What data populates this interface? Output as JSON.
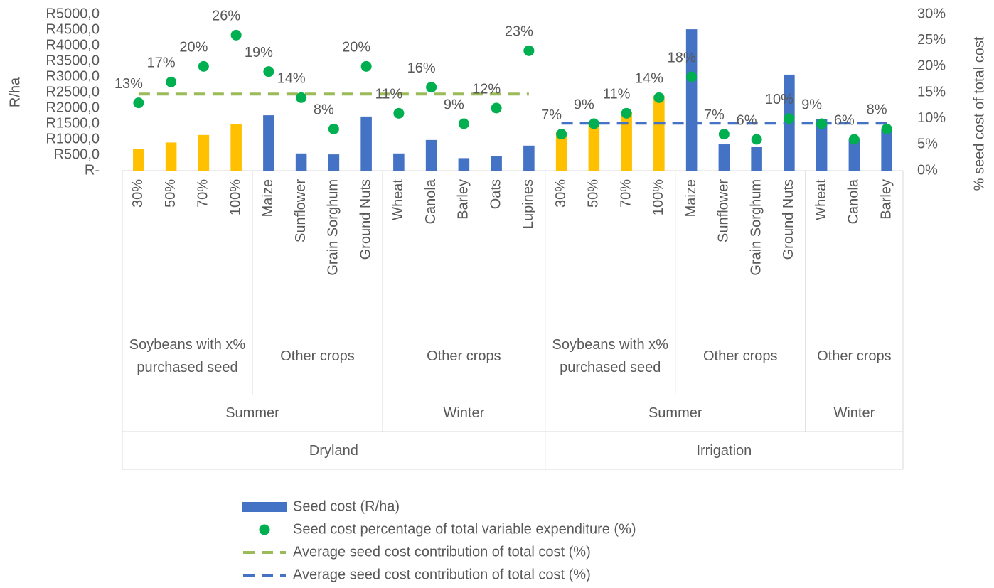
{
  "chart_data": {
    "type": "combo",
    "y_label": "R/ha",
    "y2_label": "% seed cost of total cost",
    "ylim": [
      0,
      5000
    ],
    "yticks": [
      {
        "value": 0,
        "label": "R-"
      },
      {
        "value": 500,
        "label": "R500,0"
      },
      {
        "value": 1000,
        "label": "R1000,0"
      },
      {
        "value": 1500,
        "label": "R1500,0"
      },
      {
        "value": 2000,
        "label": "R2000,0"
      },
      {
        "value": 2500,
        "label": "R2500,0"
      },
      {
        "value": 3000,
        "label": "R3000,0"
      },
      {
        "value": 3500,
        "label": "R3500,0"
      },
      {
        "value": 4000,
        "label": "R4000,0"
      },
      {
        "value": 4500,
        "label": "R4500,0"
      },
      {
        "value": 5000,
        "label": "R5000,0"
      }
    ],
    "y2lim": [
      0,
      30
    ],
    "y2ticks": [
      {
        "value": 0,
        "label": "0%"
      },
      {
        "value": 5,
        "label": "5%"
      },
      {
        "value": 10,
        "label": "10%"
      },
      {
        "value": 15,
        "label": "15%"
      },
      {
        "value": 20,
        "label": "20%"
      },
      {
        "value": 25,
        "label": "25%"
      },
      {
        "value": 30,
        "label": "30%"
      }
    ],
    "categories": [
      "30%",
      "50%",
      "70%",
      "100%",
      "Maize",
      "Sunflower",
      "Grain Sorghum",
      "Ground Nuts",
      "Wheat",
      "Canola",
      "Barley",
      "Oats",
      "Lupines",
      "30%",
      "50%",
      "70%",
      "100%",
      "Maize",
      "Sunflower",
      "Grain Sorghum",
      "Ground Nuts",
      "Wheat",
      "Canola",
      "Barley"
    ],
    "category_groups": [
      [
        "Soybeans with x% purchased seed",
        null,
        null,
        null,
        "Other crops",
        null,
        null,
        null,
        "Other crops",
        null,
        null,
        null,
        null,
        "Soybeans with x% purchased seed",
        null,
        null,
        null,
        "Other crops",
        null,
        null,
        null,
        "Other crops",
        null,
        null
      ],
      [
        "Summer",
        null,
        null,
        null,
        null,
        null,
        null,
        null,
        "Winter",
        null,
        null,
        null,
        null,
        "Summer",
        null,
        null,
        null,
        null,
        null,
        null,
        null,
        "Winter",
        null,
        null
      ],
      [
        "Dryland",
        null,
        null,
        null,
        null,
        null,
        null,
        null,
        null,
        null,
        null,
        null,
        null,
        "Irrigation",
        null,
        null,
        null,
        null,
        null,
        null,
        null,
        null,
        null,
        null
      ]
    ],
    "series": [
      {
        "name": "Seed cost (R/ha)",
        "type": "bar",
        "color": "#4472c4",
        "colors": [
          "#ffc000",
          "#ffc000",
          "#ffc000",
          "#ffc000",
          "#4472c4",
          "#4472c4",
          "#4472c4",
          "#4472c4",
          "#4472c4",
          "#4472c4",
          "#4472c4",
          "#4472c4",
          "#4472c4",
          "#ffc000",
          "#ffc000",
          "#ffc000",
          "#ffc000",
          "#4472c4",
          "#4472c4",
          "#4472c4",
          "#4472c4",
          "#4472c4",
          "#4472c4",
          "#4472c4"
        ],
        "values": [
          700,
          900,
          1140,
          1480,
          1770,
          550,
          520,
          1730,
          550,
          980,
          400,
          470,
          800,
          1250,
          1550,
          1860,
          2390,
          4520,
          840,
          750,
          3070,
          1640,
          1020,
          1340
        ]
      },
      {
        "name": "Seed cost percentage of total variable expenditure  (%)",
        "type": "scatter",
        "axis": "y2",
        "color": "#00b050",
        "values": [
          13,
          17,
          20,
          26,
          19,
          14,
          8,
          20,
          11,
          16,
          9,
          12,
          23,
          7,
          9,
          11,
          14,
          18,
          7,
          6,
          10,
          9,
          6,
          8
        ],
        "value_labels": [
          "13%",
          "17%",
          "20%",
          "26%",
          "19%",
          "14%",
          "8%",
          "20%",
          "11%",
          "16%",
          "9%",
          "12%",
          "23%",
          "7%",
          "9%",
          "11%",
          "14%",
          "18%",
          "7%",
          "6%",
          "10%",
          "9%",
          "6%",
          "8%"
        ]
      },
      {
        "name": "Average seed cost contribution of total cost (%)",
        "type": "line",
        "axis": "y2",
        "color": "#9bbb59",
        "dashed": true,
        "values": [
          14.7,
          14.7,
          14.7,
          14.7,
          14.7,
          14.7,
          14.7,
          14.7,
          14.7,
          14.7,
          14.7,
          14.7,
          14.7,
          null,
          null,
          null,
          null,
          null,
          null,
          null,
          null,
          null,
          null,
          null
        ]
      },
      {
        "name": "Average seed cost contribution of total cost (%)",
        "type": "line",
        "axis": "y2",
        "color": "#4472c4",
        "dashed": true,
        "values": [
          null,
          null,
          null,
          null,
          null,
          null,
          null,
          null,
          null,
          null,
          null,
          null,
          null,
          9.1,
          9.1,
          9.1,
          9.1,
          9.1,
          9.1,
          9.1,
          9.1,
          9.1,
          9.1,
          9.1
        ]
      }
    ]
  }
}
